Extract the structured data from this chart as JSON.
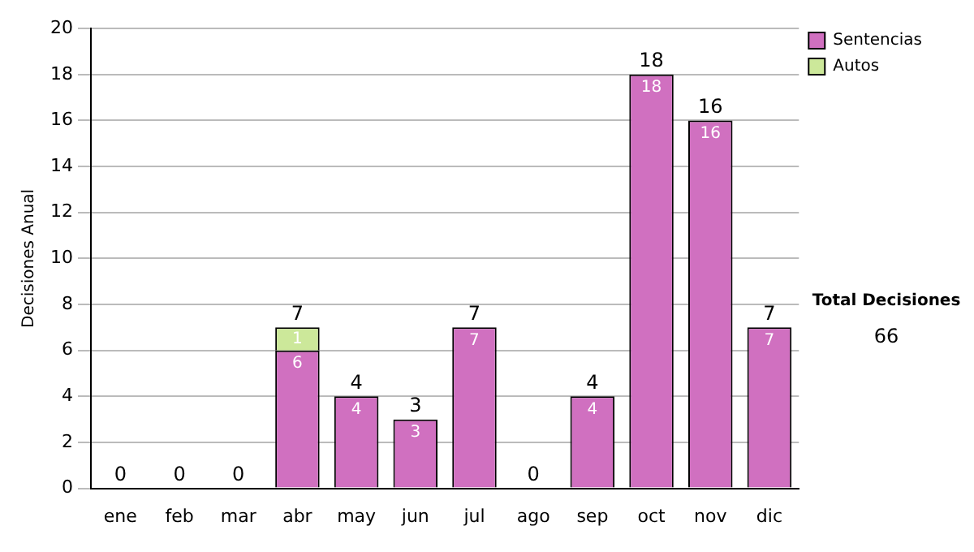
{
  "chart_data": {
    "type": "bar",
    "stacked": true,
    "ylabel": "Decisiones Anual",
    "categories": [
      "ene",
      "feb",
      "mar",
      "abr",
      "may",
      "jun",
      "jul",
      "ago",
      "sep",
      "oct",
      "nov",
      "dic"
    ],
    "series": [
      {
        "name": "Sentencias",
        "color": "#d070c0",
        "values": [
          0,
          0,
          0,
          6,
          4,
          3,
          7,
          0,
          4,
          18,
          16,
          7
        ],
        "value_labels": [
          null,
          null,
          null,
          "6",
          "4",
          "3",
          "7",
          null,
          "4",
          "18",
          "16",
          "7"
        ]
      },
      {
        "name": "Autos",
        "color": "#cce89a",
        "values": [
          0,
          0,
          0,
          1,
          0,
          0,
          0,
          0,
          0,
          0,
          0,
          0
        ],
        "value_labels": [
          null,
          null,
          null,
          "1",
          null,
          null,
          null,
          null,
          null,
          null,
          null,
          null
        ]
      }
    ],
    "totals": [
      "0",
      "0",
      "0",
      "7",
      "4",
      "3",
      "7",
      "0",
      "4",
      "18",
      "16",
      "7"
    ],
    "ylim": [
      0,
      20
    ],
    "yticks": [
      0,
      2,
      4,
      6,
      8,
      10,
      12,
      14,
      16,
      18,
      20
    ],
    "grid": "y",
    "legend": "right",
    "annotations": [
      "Total Decisiones",
      "66"
    ]
  }
}
